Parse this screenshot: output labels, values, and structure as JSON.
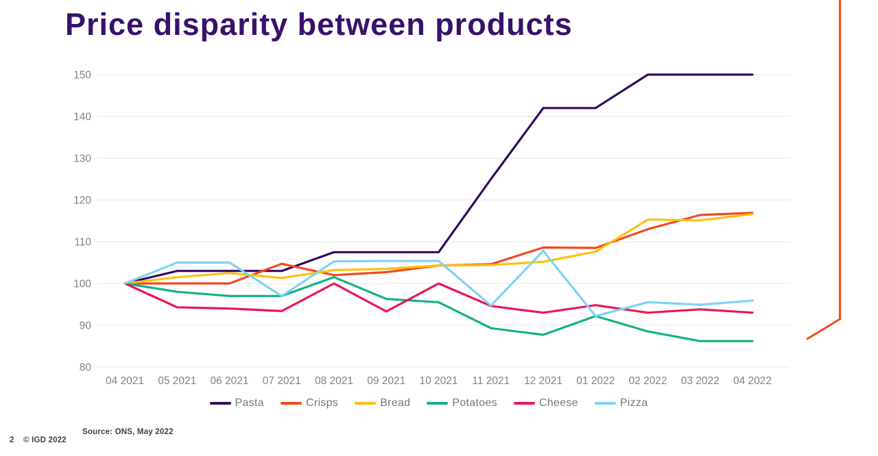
{
  "chart_data": {
    "type": "line",
    "title": "Price disparity between products",
    "categories": [
      "04 2021",
      "05 2021",
      "06 2021",
      "07 2021",
      "08 2021",
      "09 2021",
      "10 2021",
      "11 2021",
      "12 2021",
      "01 2022",
      "02 2022",
      "03 2022",
      "04 2022"
    ],
    "yticks": [
      80,
      90,
      100,
      110,
      120,
      130,
      140,
      150
    ],
    "ylim": [
      80,
      150
    ],
    "grid": "horizontal",
    "legend_position": "bottom",
    "series": [
      {
        "name": "Pasta",
        "color": "#300a5e",
        "values": [
          100,
          103,
          103,
          103,
          107.5,
          107.5,
          107.5,
          125,
          142,
          142,
          150,
          150,
          150
        ]
      },
      {
        "name": "Crisps",
        "color": "#f4481e",
        "values": [
          100,
          100,
          100,
          104.7,
          102,
          102.7,
          104.3,
          104.6,
          108.6,
          108.5,
          113,
          116.4,
          116.9
        ]
      },
      {
        "name": "Bread",
        "color": "#fdc010",
        "values": [
          100,
          101.5,
          102.5,
          101.3,
          103.2,
          103.5,
          104.3,
          104.4,
          105.2,
          107.6,
          115.3,
          115.1,
          116.6
        ]
      },
      {
        "name": "Potatoes",
        "color": "#12b189",
        "values": [
          100,
          98,
          97,
          97,
          101.5,
          96.3,
          95.5,
          89.3,
          87.7,
          92.2,
          88.5,
          86.2,
          86.2
        ]
      },
      {
        "name": "Cheese",
        "color": "#e81758",
        "values": [
          100,
          94.3,
          94,
          93.4,
          100,
          93.3,
          100,
          94.6,
          93,
          94.8,
          93,
          93.8,
          93
        ]
      },
      {
        "name": "Pizza",
        "color": "#7fd2f4",
        "values": [
          100,
          105,
          105,
          97,
          105.3,
          105.4,
          105.4,
          94.7,
          107.8,
          92.2,
          95.5,
          94.9,
          95.9
        ]
      }
    ]
  },
  "footer": {
    "source": "Source: ONS, May 2022",
    "page_number": "2",
    "copyright": "© IGD 2022"
  },
  "colors": {
    "title_purple": "#38116b",
    "accent_orange": "#fa4616",
    "axis_label": "#7c8680",
    "legend_label": "#6f7974",
    "gridline": "#e3e5e4",
    "footer_text": "#3e3e3d"
  }
}
